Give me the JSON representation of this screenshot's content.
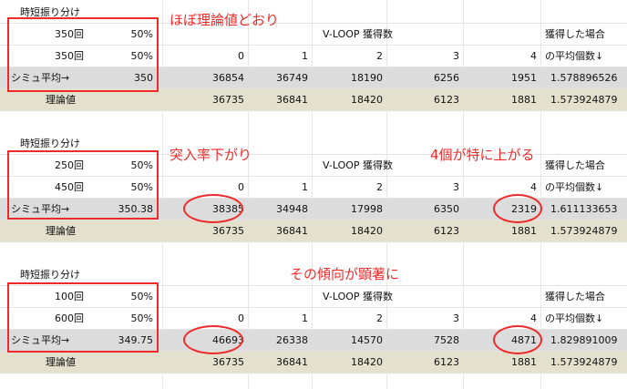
{
  "sections": [
    {
      "header": "時短振り分け",
      "split": [
        {
          "count": "350回",
          "pct": "50%"
        },
        {
          "count": "350回",
          "pct": "50%"
        }
      ],
      "sim_label": "シミュ平均→",
      "sim_avg": "350",
      "title": "V-LOOP 獲得数",
      "cols": [
        "0",
        "1",
        "2",
        "3",
        "4"
      ],
      "note1": "獲得した場合",
      "note2": "の平均個数↓",
      "sim_values": [
        "36854",
        "36749",
        "18190",
        "6256",
        "1951"
      ],
      "sim_avgcount": "1.578896526",
      "theory_label": "理論値",
      "theory_values": [
        "36735",
        "36841",
        "18420",
        "6123",
        "1881"
      ],
      "theory_avgcount": "1.573924879",
      "annotations": [
        "ほぼ理論値どおり"
      ]
    },
    {
      "header": "時短振り分け",
      "split": [
        {
          "count": "250回",
          "pct": "50%"
        },
        {
          "count": "450回",
          "pct": "50%"
        }
      ],
      "sim_label": "シミュ平均→",
      "sim_avg": "350.38",
      "title": "V-LOOP 獲得数",
      "cols": [
        "0",
        "1",
        "2",
        "3",
        "4"
      ],
      "note1": "獲得した場合",
      "note2": "の平均個数↓",
      "sim_values": [
        "38385",
        "34948",
        "17998",
        "6350",
        "2319"
      ],
      "sim_avgcount": "1.611133653",
      "theory_label": "理論値",
      "theory_values": [
        "36735",
        "36841",
        "18420",
        "6123",
        "1881"
      ],
      "theory_avgcount": "1.573924879",
      "annotations": [
        "突入率下がり",
        "4個が特に上がる"
      ]
    },
    {
      "header": "時短振り分け",
      "split": [
        {
          "count": "100回",
          "pct": "50%"
        },
        {
          "count": "600回",
          "pct": "50%"
        }
      ],
      "sim_label": "シミュ平均→",
      "sim_avg": "349.75",
      "title": "V-LOOP 獲得数",
      "cols": [
        "0",
        "1",
        "2",
        "3",
        "4"
      ],
      "note1": "獲得した場合",
      "note2": "の平均個数↓",
      "sim_values": [
        "46693",
        "26338",
        "14570",
        "7528",
        "4871"
      ],
      "sim_avgcount": "1.829891009",
      "theory_label": "理論値",
      "theory_values": [
        "36735",
        "36841",
        "18420",
        "6123",
        "1881"
      ],
      "theory_avgcount": "1.573924879",
      "annotations": [
        "その傾向が顕著に"
      ]
    }
  ],
  "colors": {
    "annotation_red": "#ee2a2a",
    "sim_row_bg": "#dcdcdc",
    "theory_row_bg": "#e3e0ce"
  }
}
